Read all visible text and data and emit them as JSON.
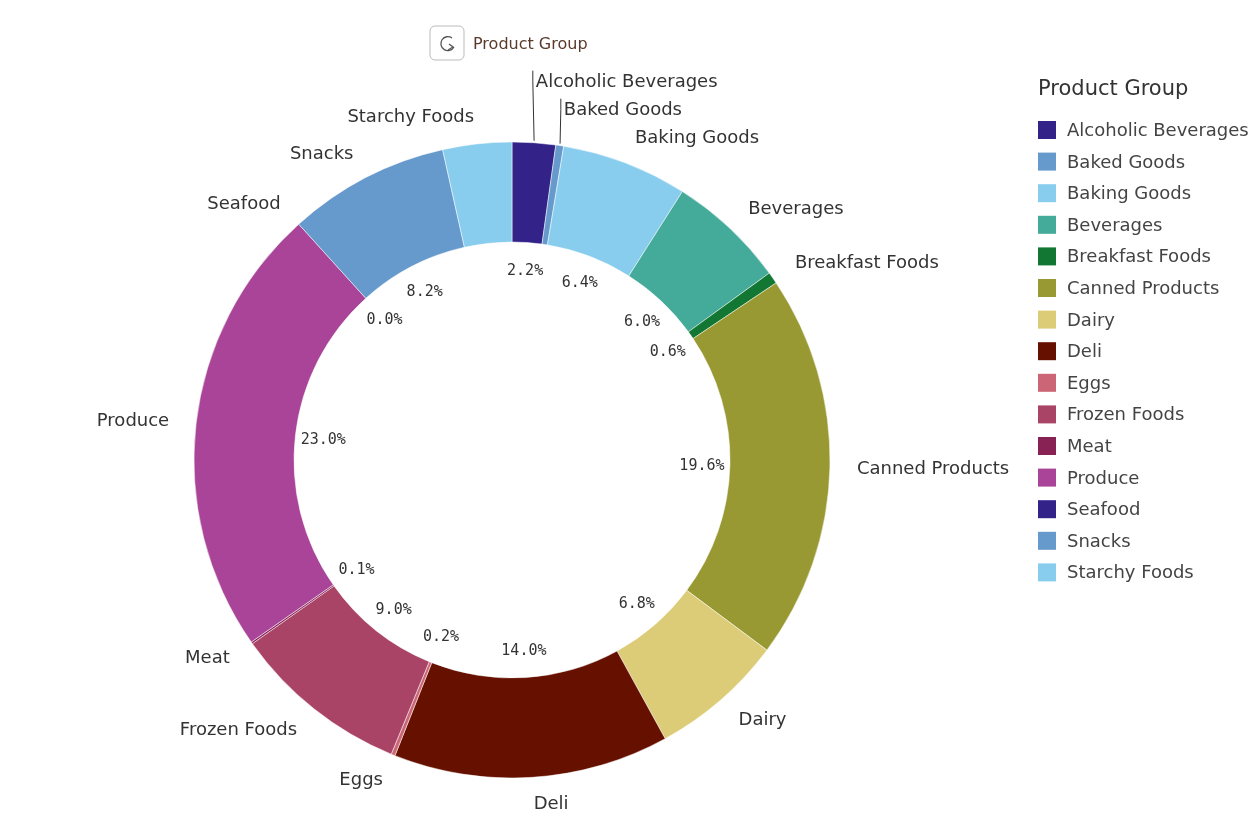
{
  "chart_data": {
    "type": "donut",
    "title": "Product Group",
    "legend_title": "Product Group",
    "legend": "right",
    "categories": [
      "Alcoholic Beverages",
      "Baked Goods",
      "Baking Goods",
      "Beverages",
      "Breakfast Foods",
      "Canned Products",
      "Dairy",
      "Deli",
      "Eggs",
      "Frozen Foods",
      "Meat",
      "Produce",
      "Seafood",
      "Snacks",
      "Starchy Foods"
    ],
    "values": [
      2.2,
      0.4,
      6.4,
      6.0,
      0.6,
      19.6,
      6.8,
      14.0,
      0.2,
      9.0,
      0.1,
      23.0,
      0.0,
      8.2,
      3.5
    ],
    "value_labels": [
      "2.2%",
      null,
      "6.4%",
      "6.0%",
      "0.6%",
      "19.6%",
      "6.8%",
      "14.0%",
      "0.2%",
      "9.0%",
      "0.1%",
      "23.0%",
      "0.0%",
      "8.2%",
      null
    ],
    "colors": [
      "#332288",
      "#6699cc",
      "#88ccee",
      "#44aa99",
      "#117733",
      "#999933",
      "#ddcc77",
      "#661100",
      "#cc6677",
      "#aa4466",
      "#882255",
      "#aa4499",
      "#332288",
      "#6699cc",
      "#88ccee"
    ]
  }
}
